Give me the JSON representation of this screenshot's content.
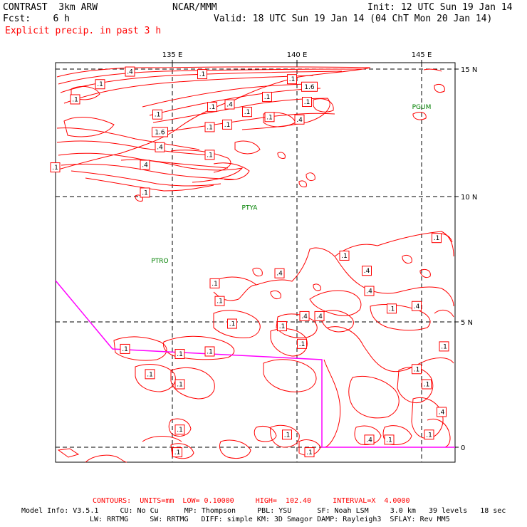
{
  "header": {
    "model_title": "CONTRAST  3km ARW",
    "org": "NCAR/MMM",
    "init": "Init: 12 UTC Sun 19 Jan 14",
    "fcst": "Fcst:    6 h",
    "valid": "Valid: 18 UTC Sun 19 Jan 14 (04 ChT Mon 20 Jan 14)",
    "field": "Explicit precip. in past 3 h"
  },
  "axes": {
    "lon_labels": [
      "135 E",
      "140 E",
      "145 E"
    ],
    "lat_labels": [
      "15 N",
      "10 N",
      "5 N",
      "0"
    ]
  },
  "stations": [
    {
      "name": "PGUM",
      "lon": 145.0,
      "lat": 13.5
    },
    {
      "name": "PTYA",
      "lon": 138.1,
      "lat": 9.5
    },
    {
      "name": "PTRO",
      "lon": 134.5,
      "lat": 7.4
    }
  ],
  "contour_labels": [
    {
      "text": ".4",
      "lon": 133.3,
      "lat": 14.9
    },
    {
      "text": ".1",
      "lon": 136.2,
      "lat": 14.8
    },
    {
      "text": ".1",
      "lon": 139.8,
      "lat": 14.6
    },
    {
      "text": ".1",
      "lon": 132.1,
      "lat": 14.4
    },
    {
      "text": "1.6",
      "lon": 140.5,
      "lat": 14.3
    },
    {
      "text": ".1",
      "lon": 138.8,
      "lat": 13.9
    },
    {
      "text": ".1",
      "lon": 131.1,
      "lat": 13.8
    },
    {
      "text": ".1",
      "lon": 140.4,
      "lat": 13.7
    },
    {
      "text": ".4",
      "lon": 137.3,
      "lat": 13.6
    },
    {
      "text": ".1",
      "lon": 136.6,
      "lat": 13.5
    },
    {
      "text": ".1",
      "lon": 138.0,
      "lat": 13.3
    },
    {
      "text": ".1",
      "lon": 134.4,
      "lat": 13.2
    },
    {
      "text": ".4",
      "lon": 140.1,
      "lat": 13.0
    },
    {
      "text": ".1",
      "lon": 138.9,
      "lat": 13.1
    },
    {
      "text": ".1",
      "lon": 137.2,
      "lat": 12.8
    },
    {
      "text": ".1",
      "lon": 136.5,
      "lat": 12.7
    },
    {
      "text": "1.6",
      "lon": 134.5,
      "lat": 12.5
    },
    {
      "text": ".4",
      "lon": 134.5,
      "lat": 11.9
    },
    {
      "text": ".1",
      "lon": 136.5,
      "lat": 11.6
    },
    {
      "text": ".4",
      "lon": 133.9,
      "lat": 11.2
    },
    {
      "text": ".1",
      "lon": 130.3,
      "lat": 11.1
    },
    {
      "text": ".1",
      "lon": 133.9,
      "lat": 10.1
    },
    {
      "text": ".1",
      "lon": 145.6,
      "lat": 8.3
    },
    {
      "text": ".1",
      "lon": 141.9,
      "lat": 7.6
    },
    {
      "text": ".4",
      "lon": 142.8,
      "lat": 7.0
    },
    {
      "text": ".4",
      "lon": 139.3,
      "lat": 6.9
    },
    {
      "text": ".1",
      "lon": 136.7,
      "lat": 6.5
    },
    {
      "text": ".4",
      "lon": 142.9,
      "lat": 6.2
    },
    {
      "text": ".1",
      "lon": 136.9,
      "lat": 5.8
    },
    {
      "text": ".1",
      "lon": 143.8,
      "lat": 5.5
    },
    {
      "text": ".4",
      "lon": 144.8,
      "lat": 5.6
    },
    {
      "text": ".4",
      "lon": 140.3,
      "lat": 5.2
    },
    {
      "text": ".4",
      "lon": 140.9,
      "lat": 5.2
    },
    {
      "text": ".1",
      "lon": 137.4,
      "lat": 4.9
    },
    {
      "text": ".1",
      "lon": 139.4,
      "lat": 4.8
    },
    {
      "text": ".1",
      "lon": 140.2,
      "lat": 4.1
    },
    {
      "text": ".1",
      "lon": 133.1,
      "lat": 3.9
    },
    {
      "text": ".1",
      "lon": 135.3,
      "lat": 3.7
    },
    {
      "text": ".1",
      "lon": 136.5,
      "lat": 3.8
    },
    {
      "text": ".1",
      "lon": 145.9,
      "lat": 4.0
    },
    {
      "text": ".1",
      "lon": 134.1,
      "lat": 2.9
    },
    {
      "text": ".1",
      "lon": 144.8,
      "lat": 3.1
    },
    {
      "text": ".1",
      "lon": 135.3,
      "lat": 2.5
    },
    {
      "text": ".1",
      "lon": 145.2,
      "lat": 2.5
    },
    {
      "text": ".4",
      "lon": 145.8,
      "lat": 1.4
    },
    {
      "text": ".1",
      "lon": 135.3,
      "lat": 0.7
    },
    {
      "text": ".1",
      "lon": 139.6,
      "lat": 0.5
    },
    {
      "text": ".1",
      "lon": 145.3,
      "lat": 0.5
    },
    {
      "text": ".4",
      "lon": 142.9,
      "lat": 0.3
    },
    {
      "text": ".1",
      "lon": 143.7,
      "lat": 0.3
    },
    {
      "text": ".1",
      "lon": 135.2,
      "lat": -0.2
    },
    {
      "text": ".1",
      "lon": 140.5,
      "lat": -0.2
    }
  ],
  "footer": {
    "contours": "CONTOURS:  UNITS=mm  LOW= 0.10000     HIGH=  102.40     INTERVAL=X  4.0000",
    "model_info_1": "Model Info: V3.5.1     CU: No Cu      MP: Thompson     PBL: YSU      SF: Noah LSM     3.0 km   39 levels   18 sec",
    "model_info_2": "LW: RRTMG     SW: RRTMG   DIFF: simple KM: 3D Smagor DAMP: Rayleigh3  SFLAY: Rev MM5"
  },
  "colors": {
    "contour": "#ff0000",
    "boundary": "#ff00ff",
    "station": "#008000",
    "grid": "#000000"
  }
}
